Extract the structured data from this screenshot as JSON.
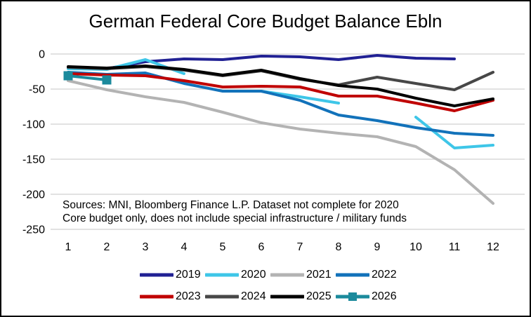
{
  "title": "German Federal Core Budget Balance Ebln",
  "source_note": {
    "line1": "Sources: MNI, Bloomberg Finance L.P. Dataset not complete for 2020",
    "line2": "Core budget only, does not include special infrastructure / military funds"
  },
  "colors": {
    "gridline": "#D9D9D9",
    "background": "#FFFFFF",
    "text": "#000000"
  },
  "chart_data": {
    "type": "line",
    "title": "German Federal Core Budget Balance Ebln",
    "xlabel": "",
    "ylabel": "",
    "x": [
      1,
      2,
      3,
      4,
      5,
      6,
      7,
      8,
      9,
      10,
      11,
      12
    ],
    "y_ticks": [
      0,
      -50,
      -100,
      -150,
      -200,
      -250
    ],
    "ylim": [
      -250,
      0
    ],
    "grid": true,
    "legend_position": "bottom",
    "series": [
      {
        "name": "2019",
        "color": "#212194",
        "marker": "none",
        "values": [
          -20,
          -21,
          -11,
          -7,
          -8,
          -3,
          -4,
          -8,
          -2,
          -6,
          -7,
          null
        ]
      },
      {
        "name": "2020",
        "color": "#3EC6E8",
        "marker": "none",
        "values": [
          -21,
          -22,
          -8,
          -28,
          null,
          -53,
          -61,
          -70,
          null,
          -90,
          -134,
          -130
        ]
      },
      {
        "name": "2021",
        "color": "#B3B3B3",
        "marker": "none",
        "values": [
          -38,
          -51,
          -61,
          -69,
          -83,
          -98,
          -107,
          -113,
          -118,
          -132,
          -165,
          -213
        ]
      },
      {
        "name": "2022",
        "color": "#1272BA",
        "marker": "none",
        "values": [
          -26,
          -29,
          -27,
          -42,
          -53,
          -53,
          -66,
          -87,
          -95,
          -105,
          -113,
          -116
        ]
      },
      {
        "name": "2023",
        "color": "#C00000",
        "marker": "none",
        "values": [
          -28,
          -30,
          -31,
          -38,
          -47,
          -46,
          -47,
          -60,
          -60,
          -70,
          -81,
          -66
        ]
      },
      {
        "name": "2024",
        "color": "#474747",
        "marker": "none",
        "values": [
          -19,
          -21,
          -18,
          -23,
          -31,
          -24,
          -36,
          -44,
          -33,
          -42,
          -51,
          -26
        ]
      },
      {
        "name": "2025",
        "color": "#000000",
        "marker": "none",
        "values": [
          -18,
          -20,
          -17,
          -22,
          -30,
          -23,
          -35,
          -45,
          -50,
          -63,
          -74,
          -64
        ]
      },
      {
        "name": "2026",
        "color": "#1B8A9C",
        "marker": "square",
        "values": [
          -31,
          -37,
          null,
          null,
          null,
          null,
          null,
          null,
          null,
          null,
          null,
          null
        ]
      }
    ]
  }
}
